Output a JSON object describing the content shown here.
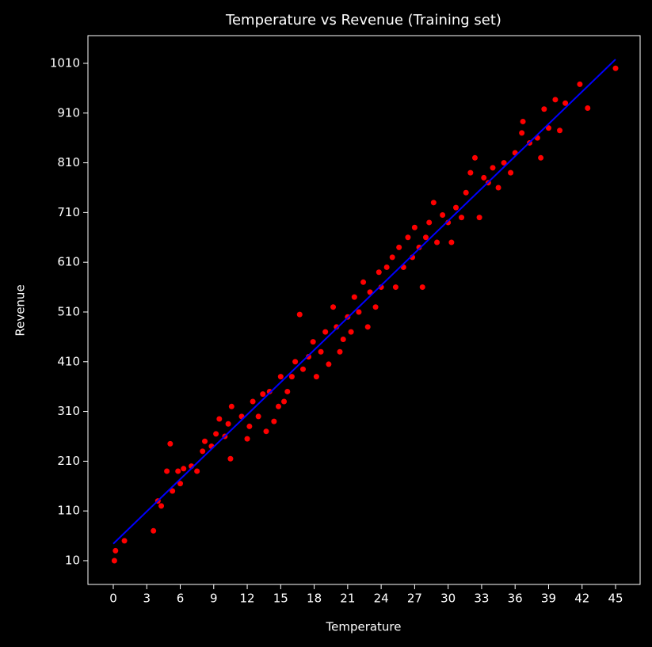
{
  "chart_data": {
    "type": "scatter",
    "title": "Temperature vs Revenue (Training set)",
    "x_label": "Temperature",
    "y_label": "Revenue",
    "xlim": [
      -2.27,
      47.2
    ],
    "ylim": [
      -37.8,
      1065.7
    ],
    "xticks": [
      0,
      3,
      6,
      9,
      12,
      15,
      18,
      21,
      24,
      27,
      30,
      33,
      36,
      39,
      42,
      45
    ],
    "yticks": [
      10,
      110,
      210,
      310,
      410,
      510,
      610,
      710,
      810,
      910,
      1010
    ],
    "grid": false,
    "series": [
      {
        "type": "scatter",
        "color": "#ff0000",
        "x": [
          0.1,
          0.2,
          1,
          3.6,
          4,
          4.3,
          4.8,
          5.1,
          5.3,
          5.8,
          6,
          6.3,
          7,
          7.5,
          8,
          8.2,
          8.8,
          9.2,
          9.5,
          10,
          10.3,
          10.5,
          10.6,
          11.5,
          12,
          12.2,
          12.5,
          13,
          13.4,
          13.7,
          14,
          14.4,
          14.8,
          15,
          15.3,
          15.6,
          16,
          16.3,
          16.7,
          17,
          17.5,
          17.9,
          18.2,
          18.6,
          19,
          19.3,
          19.7,
          20,
          20.3,
          20.6,
          21,
          21.3,
          21.6,
          22,
          22.4,
          22.8,
          23,
          23.5,
          23.8,
          24,
          24.5,
          25,
          25.3,
          25.6,
          26,
          26.4,
          26.8,
          27,
          27.4,
          27.7,
          28,
          28.3,
          28.7,
          29,
          29.5,
          30,
          30.3,
          30.7,
          31.2,
          31.6,
          32,
          32.4,
          32.8,
          33.2,
          33.6,
          34,
          34.5,
          35,
          35.6,
          36,
          36.6,
          36.7,
          37.3,
          38,
          38.3,
          38.6,
          39,
          39.6,
          40,
          40.5,
          41.8,
          42.5,
          45
        ],
        "values": [
          10,
          30,
          50,
          70,
          130,
          120,
          190,
          245,
          150,
          190,
          165,
          195,
          200,
          190,
          230,
          250,
          240,
          265,
          295,
          260,
          285,
          215,
          320,
          300,
          255,
          280,
          330,
          300,
          345,
          270,
          350,
          290,
          320,
          380,
          330,
          350,
          380,
          410,
          505,
          395,
          420,
          450,
          380,
          430,
          470,
          405,
          520,
          480,
          430,
          455,
          500,
          470,
          540,
          510,
          570,
          480,
          550,
          520,
          590,
          560,
          600,
          620,
          560,
          640,
          600,
          660,
          620,
          680,
          640,
          560,
          660,
          690,
          730,
          650,
          705,
          690,
          650,
          720,
          700,
          750,
          790,
          820,
          700,
          780,
          770,
          800,
          760,
          810,
          790,
          830,
          870,
          893,
          850,
          860,
          820,
          918,
          880,
          937,
          875,
          930,
          968,
          920,
          1000
        ]
      },
      {
        "type": "line",
        "color": "#0000ff",
        "x": [
          0,
          45
        ],
        "values": [
          44,
          1018
        ]
      }
    ]
  }
}
